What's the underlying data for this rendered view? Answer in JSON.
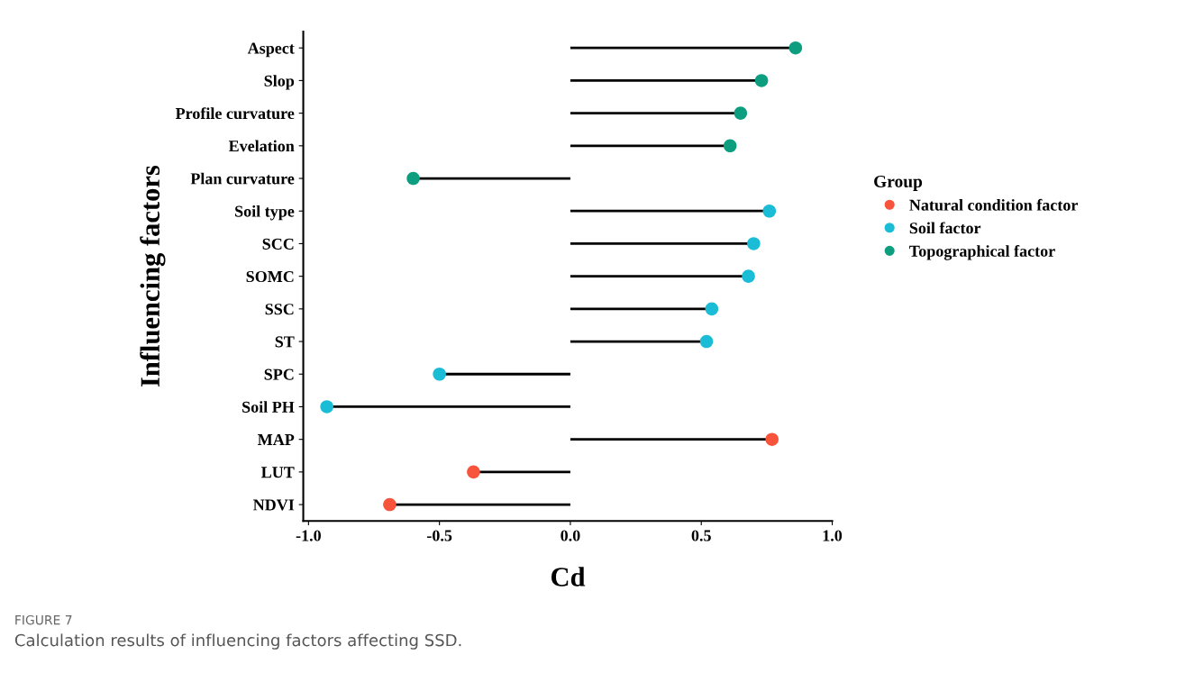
{
  "chart_data": {
    "type": "lollipop",
    "orientation": "horizontal",
    "categories": [
      "Aspect",
      "Slop",
      "Profile curvature",
      "Evelation",
      "Plan curvature",
      "Soil type",
      "SCC",
      "SOMC",
      "SSC",
      "ST",
      "SPC",
      "Soil PH",
      "MAP",
      "LUT",
      "NDVI"
    ],
    "series": [
      {
        "name": "Natural condition factor",
        "color": "#f8533b",
        "values": [
          null,
          null,
          null,
          null,
          null,
          null,
          null,
          null,
          null,
          null,
          null,
          null,
          0.77,
          -0.37,
          -0.69
        ]
      },
      {
        "name": "Soil factor",
        "color": "#1bbcd6",
        "values": [
          null,
          null,
          null,
          null,
          null,
          0.76,
          0.7,
          0.68,
          0.54,
          0.52,
          -0.5,
          -0.93,
          null,
          null,
          null
        ]
      },
      {
        "name": "Topographical factor",
        "color": "#0d9e80",
        "values": [
          0.86,
          0.73,
          0.65,
          0.61,
          -0.6,
          null,
          null,
          null,
          null,
          null,
          null,
          null,
          null,
          null,
          null
        ]
      }
    ],
    "xlabel": "Cd",
    "ylabel": "Influencing factors",
    "legend_title": "Group",
    "legend": "right",
    "marker": "circle",
    "grid": false,
    "xlim": [
      -1.02,
      1.0
    ],
    "xticks": [
      {
        "value": -1,
        "label": "-1.0"
      },
      {
        "value": -0.5,
        "label": "-0.5"
      },
      {
        "value": 0,
        "label": "0.0"
      },
      {
        "value": 0.5,
        "label": "0.5"
      },
      {
        "value": 1,
        "label": "1.0"
      }
    ],
    "annotations": [
      "FIGURE 7",
      "Calculation results of influencing factors affecting SSD."
    ]
  }
}
